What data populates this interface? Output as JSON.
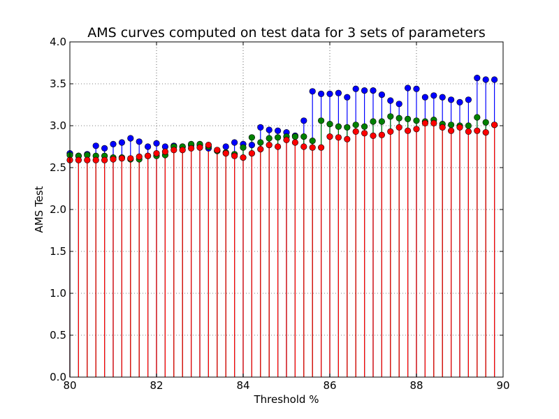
{
  "chart_data": {
    "type": "stem",
    "title": "AMS curves computed on test data for 3 sets of parameters",
    "xlabel": "Threshold %",
    "ylabel": "AMS Test",
    "xlim": [
      80,
      90
    ],
    "ylim": [
      0.0,
      4.0
    ],
    "xticks": [
      "80",
      "82",
      "84",
      "86",
      "88",
      "90"
    ],
    "yticks": [
      "0.0",
      "0.5",
      "1.0",
      "1.5",
      "2.0",
      "2.5",
      "3.0",
      "3.5",
      "4.0"
    ],
    "grid": true,
    "colors": {
      "blue": "#0000ff",
      "green": "#008000",
      "red": "#ff0000"
    },
    "x": [
      80.0,
      80.2,
      80.4,
      80.6,
      80.8,
      81.0,
      81.2,
      81.4,
      81.6,
      81.8,
      82.0,
      82.2,
      82.4,
      82.6,
      82.8,
      83.0,
      83.2,
      83.4,
      83.6,
      83.8,
      84.0,
      84.2,
      84.4,
      84.6,
      84.8,
      85.0,
      85.2,
      85.4,
      85.6,
      85.8,
      86.0,
      86.2,
      86.4,
      86.6,
      86.8,
      87.0,
      87.2,
      87.4,
      87.6,
      87.8,
      88.0,
      88.2,
      88.4,
      88.6,
      88.8,
      89.0,
      89.2,
      89.4,
      89.6,
      89.8
    ],
    "series": [
      {
        "color": "#0000ff",
        "values": [
          2.67,
          2.64,
          2.66,
          2.76,
          2.73,
          2.78,
          2.8,
          2.85,
          2.81,
          2.75,
          2.79,
          2.75,
          2.76,
          2.75,
          2.77,
          2.77,
          2.73,
          2.7,
          2.75,
          2.8,
          2.78,
          2.77,
          2.98,
          2.95,
          2.94,
          2.92,
          2.88,
          3.06,
          3.41,
          3.38,
          3.38,
          3.39,
          3.34,
          3.44,
          3.42,
          3.42,
          3.37,
          3.3,
          3.26,
          3.45,
          3.44,
          3.34,
          3.36,
          3.34,
          3.31,
          3.28,
          3.31,
          3.57,
          3.55,
          3.55
        ]
      },
      {
        "color": "#008000",
        "values": [
          2.65,
          2.64,
          2.65,
          2.64,
          2.64,
          2.62,
          2.62,
          2.6,
          2.6,
          2.64,
          2.64,
          2.65,
          2.75,
          2.75,
          2.78,
          2.78,
          2.75,
          2.7,
          2.68,
          2.66,
          2.74,
          2.86,
          2.8,
          2.85,
          2.86,
          2.87,
          2.87,
          2.87,
          2.82,
          3.06,
          3.02,
          2.99,
          2.98,
          3.01,
          2.99,
          3.05,
          3.05,
          3.11,
          3.09,
          3.08,
          3.06,
          3.05,
          3.07,
          3.02,
          3.01,
          3.0,
          3.0,
          3.1,
          3.04,
          3.01
        ]
      },
      {
        "color": "#ff0000",
        "values": [
          2.59,
          2.59,
          2.59,
          2.59,
          2.59,
          2.6,
          2.61,
          2.61,
          2.63,
          2.64,
          2.67,
          2.69,
          2.71,
          2.71,
          2.73,
          2.74,
          2.77,
          2.71,
          2.67,
          2.64,
          2.62,
          2.67,
          2.72,
          2.77,
          2.75,
          2.83,
          2.8,
          2.75,
          2.74,
          2.74,
          2.87,
          2.86,
          2.84,
          2.93,
          2.91,
          2.88,
          2.89,
          2.93,
          2.98,
          2.94,
          2.96,
          3.03,
          3.03,
          2.98,
          2.94,
          2.98,
          2.93,
          2.94,
          2.92,
          3.01
        ]
      }
    ]
  }
}
